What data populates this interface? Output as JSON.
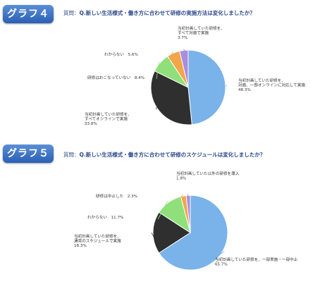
{
  "chart_data": [
    {
      "type": "pie",
      "tab_label": "グラフ４",
      "question_prefix": "質問：",
      "question": "Q.新しい生活様式・働き方に合わせて研修の実施方法は変化しましたか？",
      "slices": [
        {
          "label_lines": [
            "当初計画していた研修を、",
            "対面、一部オンラインに対応して実施"
          ],
          "value": 48.3,
          "value_text": "48.3%",
          "color": "#7ab3ea"
        },
        {
          "label_lines": [
            "当初計画していた研修を、",
            "すべてオンラインで実施"
          ],
          "value": 33.8,
          "value_text": "33.8%",
          "color": "#2f2f2f"
        },
        {
          "label_lines": [
            "研修はおこなっていない"
          ],
          "value": 8.4,
          "value_text": "8.4%",
          "color": "#8fe07a"
        },
        {
          "label_lines": [
            "わからない"
          ],
          "value": 5.6,
          "value_text": "5.6%",
          "color": "#f2a54a"
        },
        {
          "label_lines": [
            "当初計画していた研修を、",
            "すべて対面で実施"
          ],
          "value": 3.7,
          "value_text": "3.7%",
          "color": "#a88de0"
        }
      ]
    },
    {
      "type": "pie",
      "tab_label": "グラフ５",
      "question_prefix": "質問：",
      "question": "Q.新しい生活様式・働き方に合わせて研修のスケジュールは変化しましたか？",
      "slices": [
        {
          "label_lines": [
            "当初計画していた研修を、一部実施・一部中止"
          ],
          "value": 65.7,
          "value_text": "65.7%",
          "color": "#7ab3ea"
        },
        {
          "label_lines": [
            "当初計画していた研修を、",
            "通常のスケジュールで実施"
          ],
          "value": 18.3,
          "value_text": "18.3%",
          "color": "#2f2f2f"
        },
        {
          "label_lines": [
            "わからない"
          ],
          "value": 11.7,
          "value_text": "11.7%",
          "color": "#8fe07a"
        },
        {
          "label_lines": [
            "研修は中止した"
          ],
          "value": 2.3,
          "value_text": "2.3%",
          "color": "#f2a54a"
        },
        {
          "label_lines": [
            "当初計画していた以外の研修を導入"
          ],
          "value": 1.8,
          "value_text": "1.8%",
          "color": "#a88de0"
        }
      ]
    }
  ]
}
